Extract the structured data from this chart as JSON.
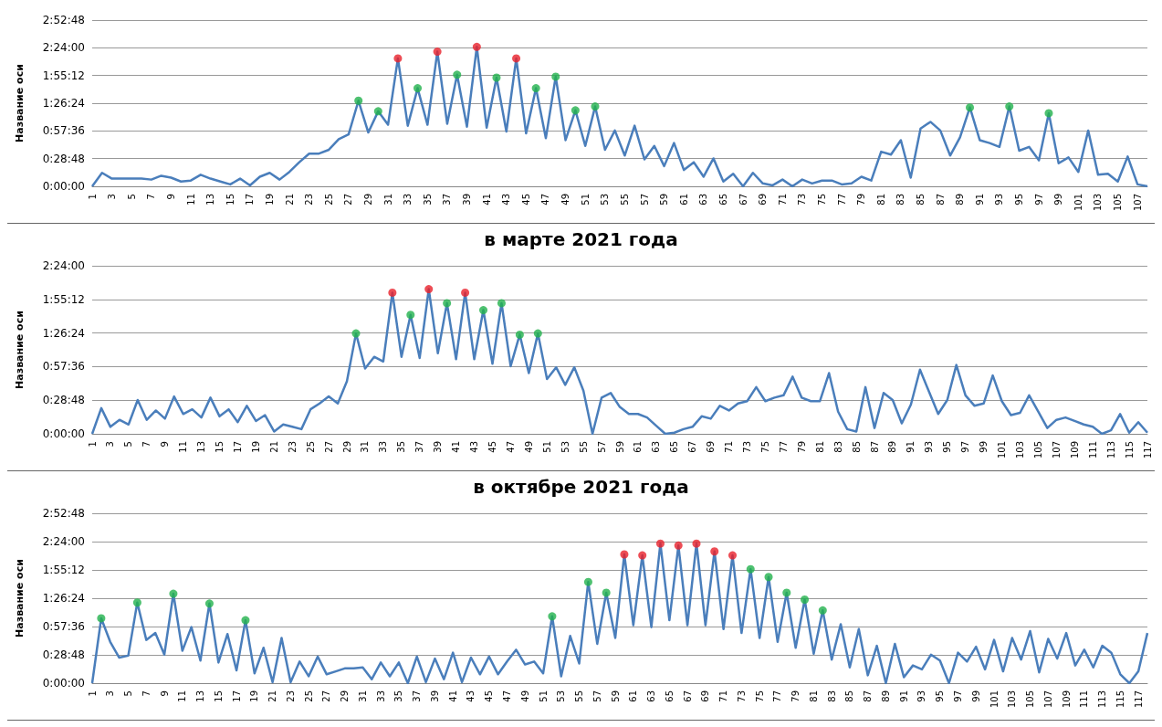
{
  "chart_data": [
    {
      "type": "line",
      "ylabel": "Название оси",
      "grid": "y",
      "categories": [
        "1",
        null,
        "3",
        null,
        "5",
        null,
        "7",
        null,
        "9",
        null,
        "11",
        null,
        "13",
        null,
        "15",
        null,
        "17",
        null,
        "19",
        null,
        "21",
        null,
        "23",
        null,
        "25",
        null,
        "27",
        null,
        "29",
        null,
        "31",
        null,
        "33",
        null,
        "35",
        null,
        "37",
        null,
        "39",
        null,
        "41",
        null,
        "43",
        null,
        "45",
        null,
        "47",
        null,
        "49",
        null,
        "51",
        null,
        "53",
        null,
        "55",
        null,
        "57",
        null,
        "59",
        null,
        "61",
        null,
        "63",
        null,
        "65",
        null,
        "67",
        null,
        "69",
        null,
        "71",
        null,
        "73",
        null,
        "75",
        null,
        "77",
        null,
        "79",
        null,
        "81",
        null,
        "83",
        null,
        "85",
        null,
        "87",
        null,
        "89",
        null,
        "91",
        null,
        "93",
        null,
        "95",
        null,
        "97",
        null,
        "99",
        null,
        "101",
        null,
        "103",
        null,
        "105",
        null,
        "107",
        null
      ],
      "ylim": [
        0,
        172.8
      ],
      "yticks": [
        {
          "value": 0,
          "label": "0:00:00"
        },
        {
          "value": 28.8,
          "label": "0:28:48"
        },
        {
          "value": 57.6,
          "label": "0:57:36"
        },
        {
          "value": 86.4,
          "label": "1:26:24"
        },
        {
          "value": 115.2,
          "label": "1:55:12"
        },
        {
          "value": 144,
          "label": "2:24:00"
        },
        {
          "value": 172.8,
          "label": "2:52:48"
        }
      ],
      "series": [
        {
          "color": "#4a7ebb",
          "marker": "none",
          "values": [
            0,
            14,
            8,
            8,
            8,
            8,
            7,
            11,
            9,
            5,
            6,
            12,
            8,
            5,
            2,
            8,
            1,
            10,
            14,
            7,
            15,
            25,
            34,
            34,
            38,
            49,
            54,
            89,
            56,
            78,
            64,
            133,
            63,
            102,
            64,
            140,
            65,
            116,
            62,
            145,
            61,
            113,
            57,
            133,
            55,
            102,
            50,
            114,
            48,
            79,
            42,
            83,
            38,
            58,
            32,
            63,
            28,
            42,
            21,
            45,
            17,
            25,
            10,
            29,
            5,
            13,
            0,
            14,
            3,
            1,
            7,
            0,
            7,
            3,
            6,
            6,
            2,
            3,
            10,
            6,
            36,
            33,
            48,
            9,
            60,
            67,
            58,
            32,
            51,
            82,
            48,
            45,
            41,
            83,
            37,
            41,
            27,
            76,
            24,
            30,
            15,
            58,
            12,
            13,
            5,
            31,
            2,
            0
          ]
        },
        {
          "type": "scatter",
          "color": "#e8202a",
          "marker": "circle",
          "values": [
            null,
            null,
            null,
            null,
            null,
            null,
            null,
            null,
            null,
            null,
            null,
            null,
            null,
            null,
            null,
            null,
            null,
            null,
            null,
            null,
            null,
            null,
            null,
            null,
            null,
            null,
            null,
            null,
            null,
            null,
            null,
            133,
            null,
            null,
            null,
            140,
            null,
            null,
            null,
            145,
            null,
            null,
            null,
            133,
            null,
            null,
            null,
            null,
            null,
            null,
            null,
            null,
            null,
            null,
            null,
            null,
            null,
            null,
            null,
            null,
            null,
            null,
            null,
            null,
            null,
            null,
            null,
            null,
            null,
            null,
            null,
            null,
            null,
            null,
            null,
            null,
            null,
            null,
            null,
            null,
            null,
            null,
            null,
            null,
            null,
            null,
            null,
            null,
            null,
            null,
            null,
            null,
            null,
            null,
            null,
            null,
            null,
            null,
            null,
            null,
            null,
            null,
            null,
            null,
            null,
            null,
            null,
            null
          ]
        },
        {
          "type": "scatter",
          "color": "#22b14c",
          "marker": "circle",
          "values": [
            null,
            null,
            null,
            null,
            null,
            null,
            null,
            null,
            null,
            null,
            null,
            null,
            null,
            null,
            null,
            null,
            null,
            null,
            null,
            null,
            null,
            null,
            null,
            null,
            null,
            null,
            null,
            89,
            null,
            78,
            null,
            null,
            null,
            102,
            null,
            null,
            null,
            116,
            null,
            null,
            null,
            113,
            null,
            null,
            null,
            102,
            null,
            114,
            null,
            79,
            null,
            83,
            null,
            null,
            null,
            null,
            null,
            null,
            null,
            null,
            null,
            null,
            null,
            null,
            null,
            null,
            null,
            null,
            null,
            null,
            null,
            null,
            null,
            null,
            null,
            null,
            null,
            null,
            null,
            null,
            null,
            null,
            null,
            null,
            null,
            null,
            null,
            null,
            null,
            82,
            null,
            null,
            null,
            83,
            null,
            null,
            null,
            76,
            null,
            null,
            null,
            null,
            null,
            null,
            null,
            null,
            null,
            null
          ]
        }
      ]
    },
    {
      "type": "line",
      "title": "в марте 2021 года",
      "ylabel": "Название оси",
      "grid": "y",
      "categories": [
        "1",
        null,
        "3",
        null,
        "5",
        null,
        "7",
        null,
        "9",
        null,
        "11",
        null,
        "13",
        null,
        "15",
        null,
        "17",
        null,
        "19",
        null,
        "21",
        null,
        "23",
        null,
        "25",
        null,
        "27",
        null,
        "29",
        null,
        "31",
        null,
        "33",
        null,
        "35",
        null,
        "37",
        null,
        "39",
        null,
        "41",
        null,
        "43",
        null,
        "45",
        null,
        "47",
        null,
        "49",
        null,
        "51",
        null,
        "53",
        null,
        "55",
        null,
        "57",
        null,
        "59",
        null,
        "61",
        null,
        "63",
        null,
        "65",
        null,
        "67",
        null,
        "69",
        null,
        "71",
        null,
        "73",
        null,
        "75",
        null,
        "77",
        null,
        "79",
        null,
        "81",
        null,
        "83",
        null,
        "85",
        null,
        "87",
        null,
        "89",
        null,
        "91",
        null,
        "93",
        null,
        "95",
        null,
        "97",
        null,
        "99",
        null,
        "101",
        null,
        "103",
        null,
        "105",
        null,
        "107",
        null,
        "109",
        null,
        "111",
        null,
        "113",
        null,
        "115",
        null,
        "117"
      ],
      "ylim": [
        0,
        144
      ],
      "yticks": [
        {
          "value": 0,
          "label": "0:00:00"
        },
        {
          "value": 28.8,
          "label": "0:28:48"
        },
        {
          "value": 57.6,
          "label": "0:57:36"
        },
        {
          "value": 86.4,
          "label": "1:26:24"
        },
        {
          "value": 115.2,
          "label": "1:55:12"
        },
        {
          "value": 144,
          "label": "2:24:00"
        }
      ],
      "series": [
        {
          "color": "#4a7ebb",
          "marker": "none",
          "values": [
            0,
            22,
            6,
            12,
            8,
            29,
            12,
            20,
            13,
            32,
            17,
            21,
            14,
            31,
            15,
            21,
            10,
            24,
            11,
            16,
            2,
            8,
            6,
            4,
            21,
            26,
            32,
            26,
            45,
            86,
            56,
            66,
            62,
            121,
            66,
            102,
            65,
            124,
            69,
            112,
            64,
            121,
            64,
            106,
            60,
            112,
            58,
            85,
            52,
            86,
            47,
            57,
            42,
            57,
            37,
            0,
            31,
            35,
            23,
            17,
            17,
            14,
            7,
            0,
            1,
            4,
            6,
            15,
            13,
            24,
            20,
            26,
            28,
            40,
            28,
            31,
            33,
            49,
            31,
            28,
            28,
            52,
            19,
            4,
            2,
            40,
            5,
            35,
            29,
            9,
            25,
            55,
            36,
            17,
            29,
            59,
            33,
            24,
            26,
            50,
            28,
            16,
            18,
            33,
            19,
            5,
            12,
            14,
            11,
            8,
            6,
            0,
            3,
            17,
            1,
            10,
            1
          ]
        },
        {
          "type": "scatter",
          "color": "#e8202a",
          "marker": "circle",
          "values": [
            null,
            null,
            null,
            null,
            null,
            null,
            null,
            null,
            null,
            null,
            null,
            null,
            null,
            null,
            null,
            null,
            null,
            null,
            null,
            null,
            null,
            null,
            null,
            null,
            null,
            null,
            null,
            null,
            null,
            null,
            null,
            null,
            null,
            121,
            null,
            null,
            null,
            124,
            null,
            null,
            null,
            121,
            null,
            null,
            null,
            null,
            null,
            null,
            null,
            null,
            null,
            null,
            null,
            null,
            null,
            null,
            null,
            null,
            null,
            null,
            null,
            null,
            null,
            null,
            null,
            null,
            null,
            null,
            null,
            null,
            null,
            null,
            null,
            null,
            null,
            null,
            null,
            null,
            null,
            null,
            null,
            null,
            null,
            null,
            null,
            null,
            null,
            null,
            null,
            null,
            null,
            null,
            null,
            null,
            null,
            null,
            null,
            null,
            null,
            null,
            null,
            null,
            null,
            null,
            null,
            null,
            null,
            null,
            null,
            null,
            null,
            null,
            null,
            null,
            null,
            null,
            null
          ]
        },
        {
          "type": "scatter",
          "color": "#22b14c",
          "marker": "circle",
          "values": [
            null,
            null,
            null,
            null,
            null,
            null,
            null,
            null,
            null,
            null,
            null,
            null,
            null,
            null,
            null,
            null,
            null,
            null,
            null,
            null,
            null,
            null,
            null,
            null,
            null,
            null,
            null,
            null,
            null,
            86,
            null,
            null,
            null,
            null,
            null,
            102,
            null,
            null,
            null,
            112,
            null,
            null,
            null,
            106,
            null,
            112,
            null,
            85,
            null,
            86,
            null,
            null,
            null,
            null,
            null,
            null,
            null,
            null,
            null,
            null,
            null,
            null,
            null,
            null,
            null,
            null,
            null,
            null,
            null,
            null,
            null,
            null,
            null,
            null,
            null,
            null,
            null,
            null,
            null,
            null,
            null,
            null,
            null,
            null,
            null,
            null,
            null,
            null,
            null,
            null,
            null,
            null,
            null,
            null,
            null,
            null,
            null,
            null,
            null,
            null,
            null,
            null,
            null,
            null,
            null,
            null,
            null,
            null,
            null,
            null,
            null,
            null,
            null,
            null,
            null,
            null,
            null
          ]
        }
      ]
    },
    {
      "type": "line",
      "title": "в октябре 2021 года",
      "ylabel": "Название оси",
      "grid": "y",
      "categories": [
        "1",
        null,
        "3",
        null,
        "5",
        null,
        "7",
        null,
        "9",
        null,
        "11",
        null,
        "13",
        null,
        "15",
        null,
        "17",
        null,
        "19",
        null,
        "21",
        null,
        "23",
        null,
        "25",
        null,
        "27",
        null,
        "29",
        null,
        "31",
        null,
        "33",
        null,
        "35",
        null,
        "37",
        null,
        "39",
        null,
        "41",
        null,
        "43",
        null,
        "45",
        null,
        "47",
        null,
        "49",
        null,
        "51",
        null,
        "53",
        null,
        "55",
        null,
        "57",
        null,
        "59",
        null,
        "61",
        null,
        "63",
        null,
        "65",
        null,
        "67",
        null,
        "69",
        null,
        "71",
        null,
        "73",
        null,
        "75",
        null,
        "77",
        null,
        "79",
        null,
        "81",
        null,
        "83",
        null,
        "85",
        null,
        "87",
        null,
        "89",
        null,
        "91",
        null,
        "93",
        null,
        "95",
        null,
        "97",
        null,
        "99",
        null,
        "101",
        null,
        "103",
        null,
        "105",
        null,
        "107",
        null,
        "109",
        null,
        "111",
        null,
        "113",
        null,
        "115",
        null,
        "117",
        null
      ],
      "ylim": [
        0,
        172.8
      ],
      "yticks": [
        {
          "value": 0,
          "label": "0:00:00"
        },
        {
          "value": 28.8,
          "label": "0:28:48"
        },
        {
          "value": 57.6,
          "label": "0:57:36"
        },
        {
          "value": 86.4,
          "label": "1:26:24"
        },
        {
          "value": 115.2,
          "label": "1:55:12"
        },
        {
          "value": 144,
          "label": "2:24:00"
        },
        {
          "value": 172.8,
          "label": "2:52:48"
        }
      ],
      "series": [
        {
          "color": "#4a7ebb",
          "marker": "none",
          "values": [
            0,
            66,
            42,
            26,
            28,
            82,
            44,
            51,
            29,
            91,
            33,
            57,
            23,
            81,
            21,
            50,
            13,
            64,
            10,
            36,
            1,
            46,
            1,
            22,
            7,
            27,
            9,
            12,
            15,
            15,
            16,
            4,
            21,
            7,
            21,
            0,
            27,
            1,
            25,
            4,
            31,
            1,
            26,
            9,
            27,
            9,
            22,
            34,
            19,
            22,
            10,
            68,
            7,
            48,
            20,
            103,
            40,
            92,
            46,
            131,
            59,
            130,
            57,
            142,
            64,
            140,
            59,
            142,
            59,
            134,
            55,
            130,
            51,
            116,
            46,
            108,
            42,
            92,
            36,
            85,
            30,
            74,
            24,
            60,
            16,
            55,
            8,
            38,
            0,
            40,
            6,
            18,
            14,
            29,
            23,
            0,
            31,
            22,
            37,
            14,
            44,
            12,
            46,
            24,
            53,
            11,
            45,
            25,
            51,
            18,
            34,
            16,
            38,
            31,
            9,
            0,
            12,
            51
          ]
        },
        {
          "type": "scatter",
          "color": "#e8202a",
          "marker": "circle",
          "values": [
            null,
            null,
            null,
            null,
            null,
            null,
            null,
            null,
            null,
            null,
            null,
            null,
            null,
            null,
            null,
            null,
            null,
            null,
            null,
            null,
            null,
            null,
            null,
            null,
            null,
            null,
            null,
            null,
            null,
            null,
            null,
            null,
            null,
            null,
            null,
            null,
            null,
            null,
            null,
            null,
            null,
            null,
            null,
            null,
            null,
            null,
            null,
            null,
            null,
            null,
            null,
            null,
            null,
            null,
            null,
            null,
            null,
            null,
            null,
            131,
            null,
            130,
            null,
            142,
            null,
            140,
            null,
            142,
            null,
            134,
            null,
            130,
            null,
            null,
            null,
            null,
            null,
            null,
            null,
            null,
            null,
            null,
            null,
            null,
            null,
            null,
            null,
            null,
            null,
            null,
            null,
            null,
            null,
            null,
            null,
            null,
            null,
            null,
            null,
            null,
            null,
            null,
            null,
            null,
            null,
            null,
            null,
            null,
            null,
            null,
            null,
            null,
            null,
            null,
            null,
            null,
            null,
            null
          ]
        },
        {
          "type": "scatter",
          "color": "#22b14c",
          "marker": "circle",
          "values": [
            null,
            66,
            null,
            null,
            null,
            82,
            null,
            null,
            null,
            91,
            null,
            null,
            null,
            81,
            null,
            null,
            null,
            64,
            null,
            null,
            null,
            null,
            null,
            null,
            null,
            null,
            null,
            null,
            null,
            null,
            null,
            null,
            null,
            null,
            null,
            null,
            null,
            null,
            null,
            null,
            null,
            null,
            null,
            null,
            null,
            null,
            null,
            null,
            null,
            null,
            null,
            68,
            null,
            null,
            null,
            103,
            null,
            92,
            null,
            null,
            null,
            null,
            null,
            null,
            null,
            null,
            null,
            null,
            null,
            null,
            null,
            null,
            null,
            116,
            null,
            108,
            null,
            92,
            null,
            85,
            null,
            74,
            null,
            null,
            null,
            null,
            null,
            null,
            null,
            null,
            null,
            null,
            null,
            null,
            null,
            null,
            null,
            null,
            null,
            null,
            null,
            null,
            null,
            null,
            null,
            null,
            null,
            null,
            null,
            null,
            null,
            null,
            null,
            null,
            null,
            null,
            null,
            null
          ]
        }
      ]
    }
  ]
}
